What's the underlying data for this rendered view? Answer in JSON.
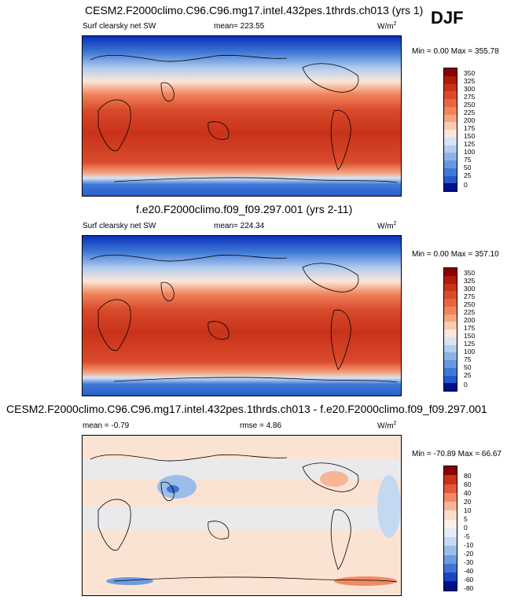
{
  "season": "DJF",
  "panels": [
    {
      "title": "CESM2.F2000climo.C96.C96.mg17.intel.432pes.1thrds.ch013 (yrs 1)",
      "left_label": "Surf clearsky net SW",
      "mean_label": "mean= 223.55",
      "rmse_label": "",
      "units": "W/m",
      "units_sup": "2",
      "minmax": "Min =   0.00 Max = 355.78",
      "colorbar_ticks": [
        "350",
        "325",
        "300",
        "275",
        "250",
        "225",
        "200",
        "175",
        "150",
        "125",
        "100",
        "75",
        "50",
        "25",
        "0"
      ]
    },
    {
      "title": "f.e20.F2000climo.f09_f09.297.001 (yrs 2-11)",
      "left_label": "Surf clearsky net SW",
      "mean_label": "mean= 224.34",
      "rmse_label": "",
      "units": "W/m",
      "units_sup": "2",
      "minmax": "Min =   0.00 Max = 357.10",
      "colorbar_ticks": [
        "350",
        "325",
        "300",
        "275",
        "250",
        "225",
        "200",
        "175",
        "150",
        "125",
        "100",
        "75",
        "50",
        "25",
        "0"
      ]
    },
    {
      "title": "CESM2.F2000climo.C96.C96.mg17.intel.432pes.1thrds.ch013 - f.e20.F2000climo.f09_f09.297.001",
      "left_label": "mean =  -0.79",
      "mean_label": "rmse =   4.86",
      "rmse_label": "",
      "units": "W/m",
      "units_sup": "2",
      "minmax": "Min = -70.89 Max =  66.67",
      "colorbar_ticks": [
        "80",
        "60",
        "40",
        "20",
        "10",
        "5",
        "0",
        "-5",
        "-10",
        "-20",
        "-30",
        "-40",
        "-60",
        "-80"
      ]
    }
  ],
  "colors": {
    "abs_scale": [
      "#8b0000",
      "#b01a0a",
      "#c8321a",
      "#d94a2b",
      "#e9653f",
      "#f0845c",
      "#f5a57f",
      "#f9cbb0",
      "#fbe6d8",
      "#d6e4f5",
      "#b3cdee",
      "#8db3e6",
      "#6797df",
      "#3f79d6",
      "#2558cc",
      "#0b2fb8",
      "#000f8a"
    ],
    "diff_scale": [
      "#8b0000",
      "#c8321a",
      "#e6583a",
      "#f08a66",
      "#f7b598",
      "#fbdccb",
      "#fdf0e6",
      "#e3ecf8",
      "#c4d8f2",
      "#9dbde9",
      "#6d9be0",
      "#3f74d5",
      "#1b45c0",
      "#000f8a"
    ]
  }
}
